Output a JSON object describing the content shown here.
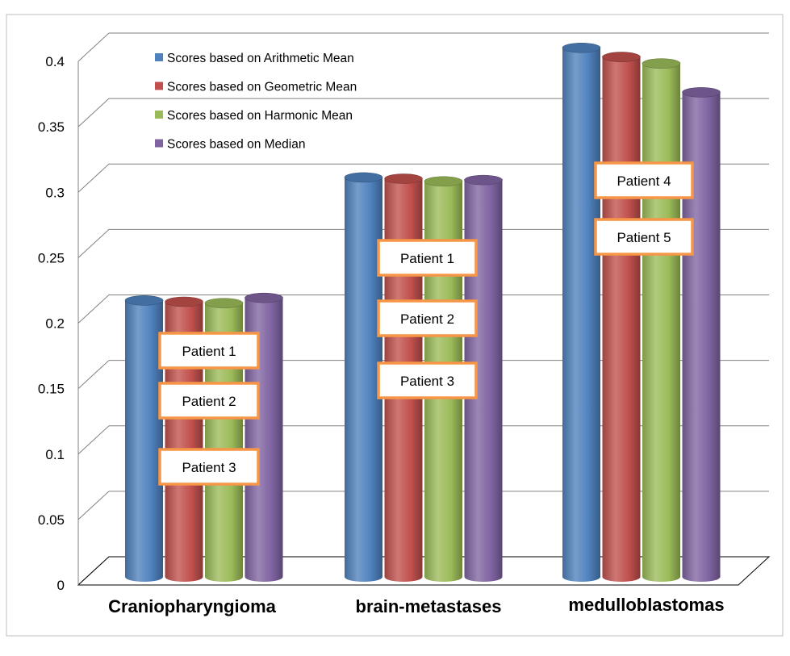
{
  "chart_data": {
    "type": "bar",
    "style": "3d-cylinder",
    "categories": [
      "Craniopharyngioma",
      "brain-metastases",
      "medulloblastomas"
    ],
    "series": [
      {
        "name": "Scores based on Arithmetic Mean",
        "color": "#4F81BD",
        "values": [
          0.205,
          0.299,
          0.398
        ]
      },
      {
        "name": "Scores based on Geometric Mean",
        "color": "#C0504D",
        "values": [
          0.204,
          0.298,
          0.391
        ]
      },
      {
        "name": "Scores based on Harmonic Mean",
        "color": "#9BBB59",
        "values": [
          0.203,
          0.296,
          0.386
        ]
      },
      {
        "name": "Scores based on Median",
        "color": "#8064A2",
        "values": [
          0.207,
          0.297,
          0.364
        ]
      }
    ],
    "ylim": [
      0,
      0.4
    ],
    "yticks": [
      "0",
      "0.05",
      "0.1",
      "0.15",
      "0.2",
      "0.25",
      "0.3",
      "0.35",
      "0.4"
    ],
    "grid": true,
    "legend_position": "top-left",
    "annotations": [
      {
        "category": 0,
        "items": [
          "Patient 1",
          "Patient 2",
          "Patient 3"
        ]
      },
      {
        "category": 1,
        "items": [
          "Patient 1",
          "Patient 2",
          "Patient 3"
        ]
      },
      {
        "category": 2,
        "items": [
          "Patient 4",
          "Patient 5"
        ]
      }
    ],
    "annotation_border_color": "#F79646"
  }
}
